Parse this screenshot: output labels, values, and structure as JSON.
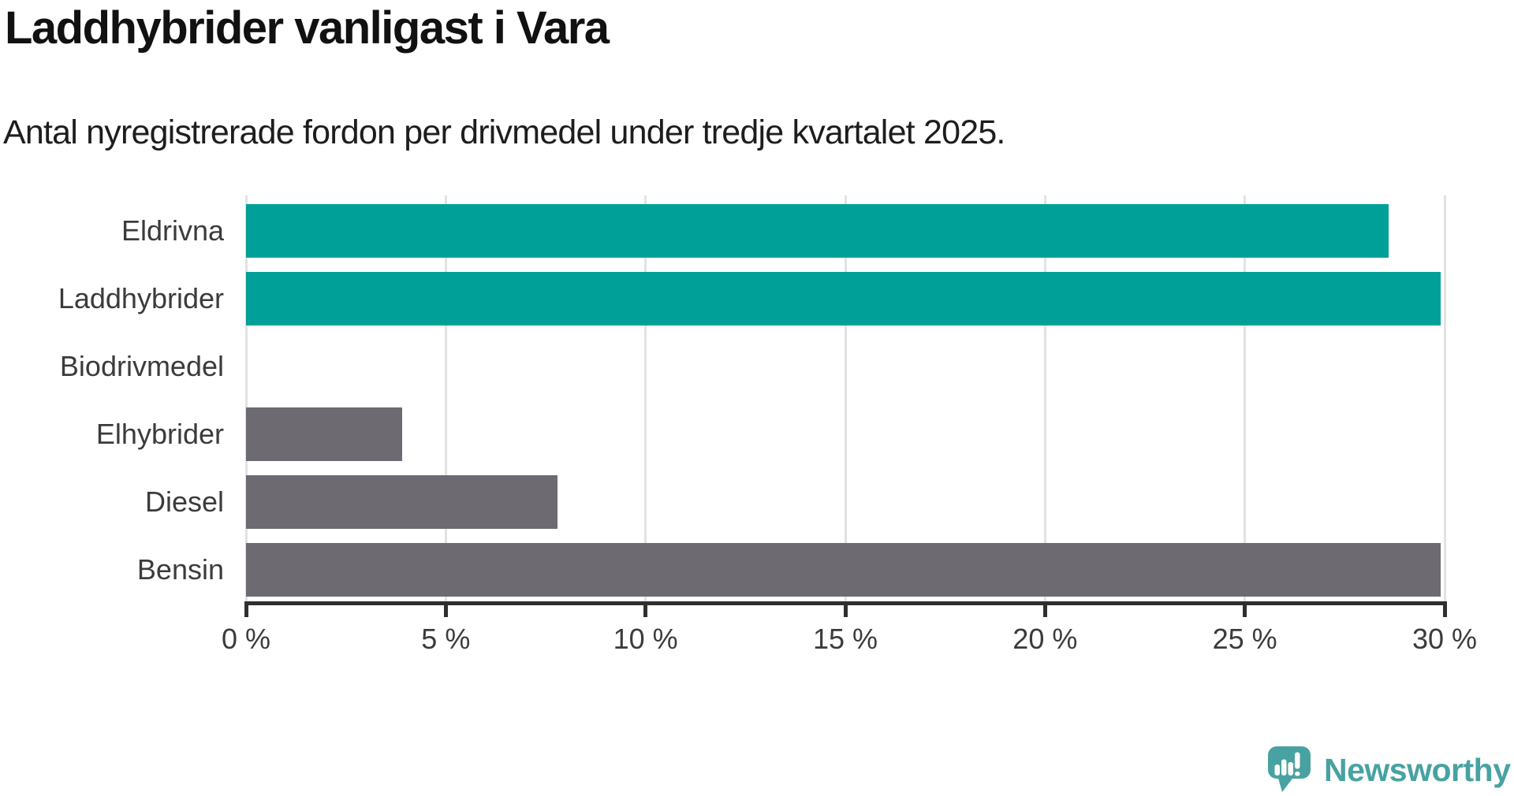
{
  "title": "Laddhybrider vanligast i Vara",
  "subtitle": "Antal nyregistrerade fordon per drivmedel under tredje kvartalet 2025.",
  "chart_data": {
    "type": "bar",
    "orientation": "horizontal",
    "title": "Laddhybrider vanligast i Vara",
    "subtitle": "Antal nyregistrerade fordon per drivmedel under tredje kvartalet 2025.",
    "categories": [
      "Eldrivna",
      "Laddhybrider",
      "Biodrivmedel",
      "Elhybrider",
      "Diesel",
      "Bensin"
    ],
    "values": [
      28.6,
      29.9,
      0,
      3.9,
      7.8,
      29.9
    ],
    "unit": "%",
    "xlim": [
      0,
      30
    ],
    "x_ticks": [
      0,
      5,
      10,
      15,
      20,
      25,
      30
    ],
    "x_tick_labels": [
      "0 %",
      "5 %",
      "10 %",
      "15 %",
      "20 %",
      "25 %",
      "30 %"
    ],
    "grid": true,
    "legend": "none",
    "bar_colors": [
      "#00a099",
      "#00a099",
      "#6d6a72",
      "#6d6a72",
      "#6d6a72",
      "#6d6a72"
    ],
    "style": {
      "highlight_color": "#00a099",
      "default_color": "#6d6a72",
      "gridline_color": "#e2e2e2",
      "axis_color": "#2f2f2f",
      "label_color": "#3b3b3b"
    }
  },
  "branding": {
    "logo_text": "Newsworthy",
    "logo_color": "#48a2a2",
    "icon": "newsworthy-speech-bubble-barchart-icon"
  }
}
